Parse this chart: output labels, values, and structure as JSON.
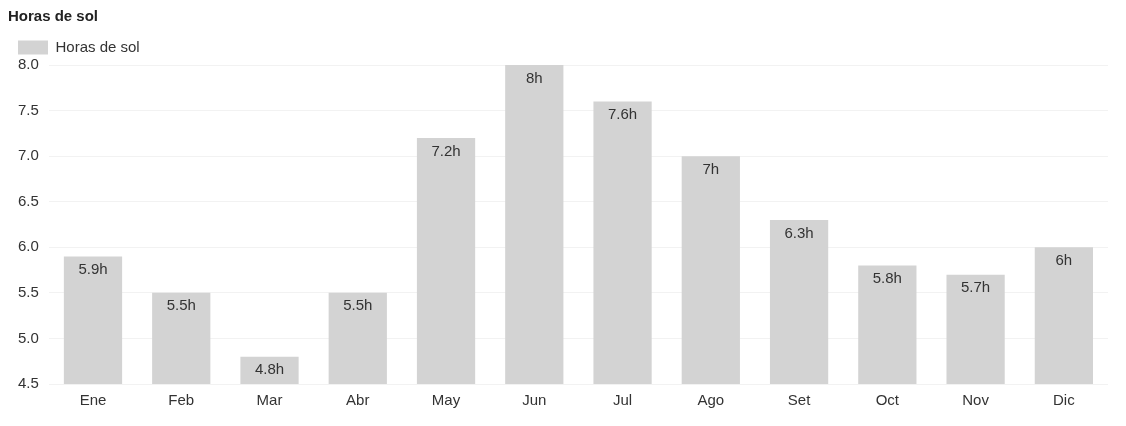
{
  "chart_data": {
    "type": "bar",
    "title": "Horas de sol",
    "categories": [
      "Ene",
      "Feb",
      "Mar",
      "Abr",
      "May",
      "Jun",
      "Jul",
      "Ago",
      "Set",
      "Oct",
      "Nov",
      "Dic"
    ],
    "series": [
      {
        "name": "Horas de sol",
        "color": "#d3d3d3",
        "values": [
          5.9,
          5.5,
          4.8,
          5.5,
          7.2,
          8,
          7.6,
          7,
          6.3,
          5.8,
          5.7,
          6
        ],
        "value_labels": [
          "5.9h",
          "5.5h",
          "4.8h",
          "5.5h",
          "7.2h",
          "8h",
          "7.6h",
          "7h",
          "6.3h",
          "5.8h",
          "5.7h",
          "6h"
        ]
      }
    ],
    "ylim": [
      4.5,
      8.0
    ],
    "yticks": [
      4.5,
      {
        "value": 5,
        "label": "5.0"
      },
      5.5,
      {
        "value": 6,
        "label": "6.0"
      },
      6.5,
      {
        "value": 7,
        "label": "7.0"
      },
      7.5,
      {
        "value": 8,
        "label": "8.0"
      }
    ],
    "grid": "y",
    "legend": "top left"
  }
}
